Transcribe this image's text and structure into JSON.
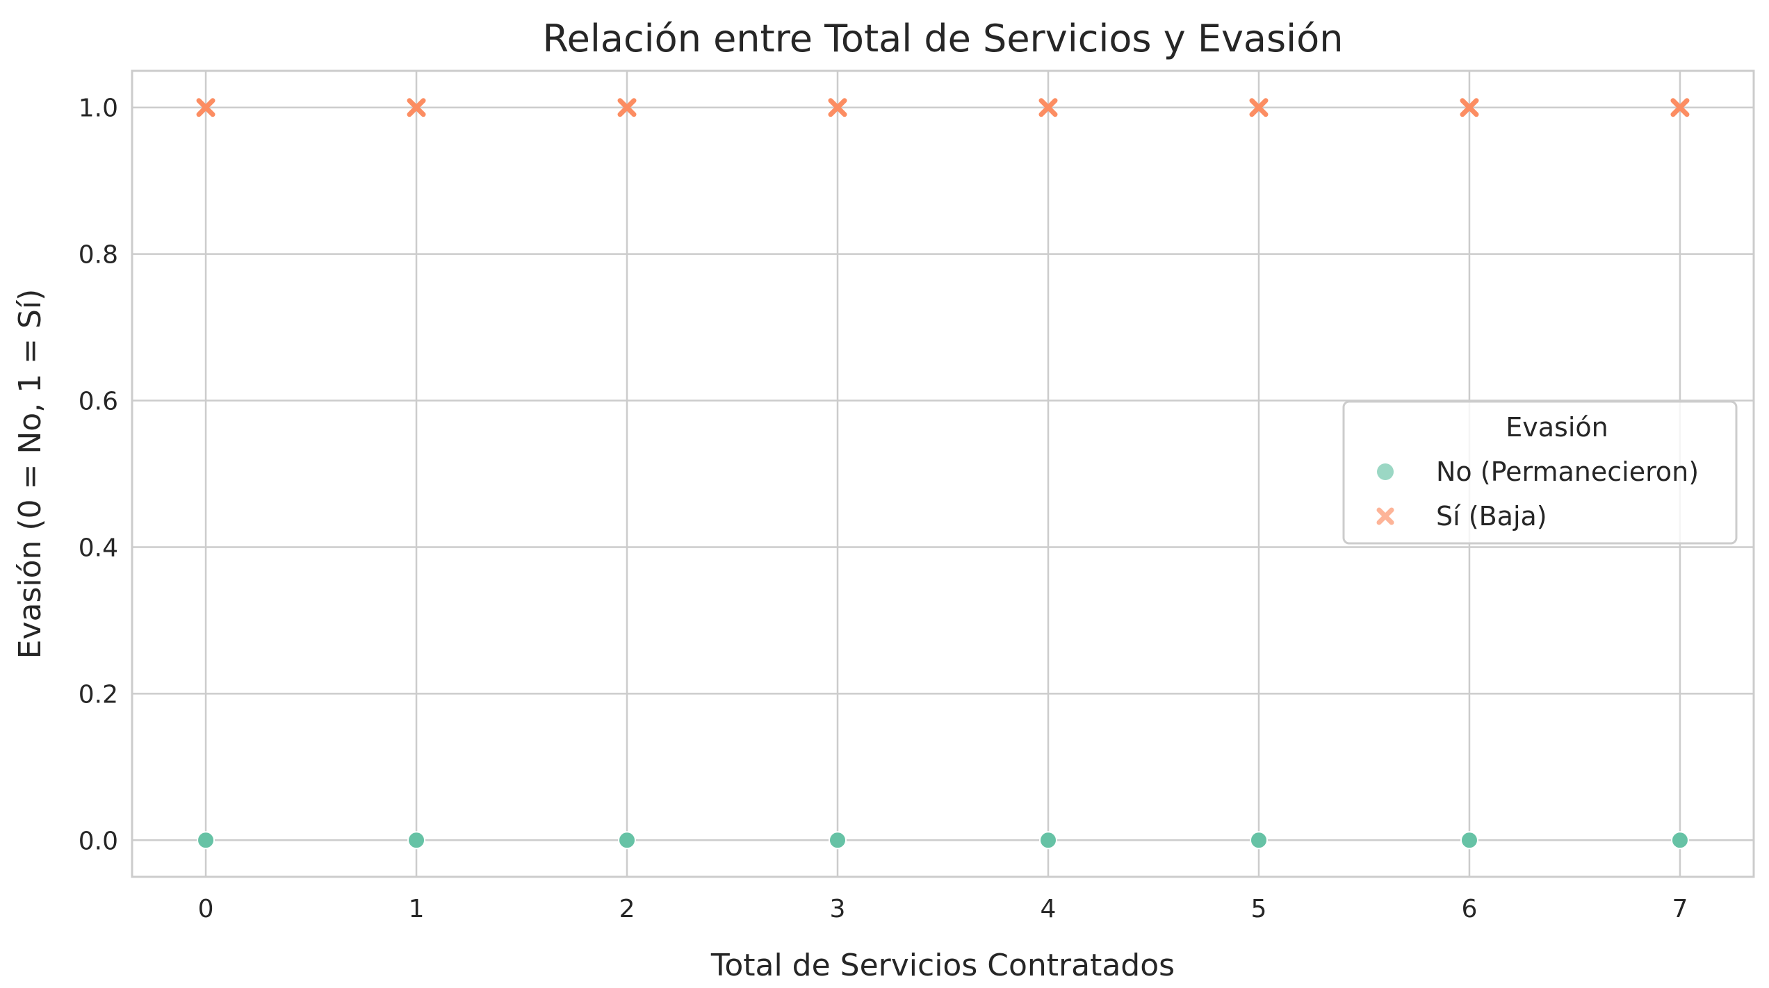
{
  "chart_data": {
    "type": "scatter",
    "title": "Relación entre Total de Servicios y Evasión",
    "xlabel": "Total de Servicios Contratados",
    "ylabel": "Evasión (0 = No, 1 = Sí)",
    "xlim": [
      -0.35,
      7.35
    ],
    "ylim": [
      -0.05,
      1.05
    ],
    "xticks": [
      0,
      1,
      2,
      3,
      4,
      5,
      6,
      7
    ],
    "xtick_labels": [
      "0",
      "1",
      "2",
      "3",
      "4",
      "5",
      "6",
      "7"
    ],
    "yticks": [
      0.0,
      0.2,
      0.4,
      0.6,
      0.8,
      1.0
    ],
    "ytick_labels": [
      "0.0",
      "0.2",
      "0.4",
      "0.6",
      "0.8",
      "1.0"
    ],
    "grid": true,
    "legend": {
      "title": "Evasión",
      "placement": "center-right"
    },
    "series": [
      {
        "name": "No (Permanecieron)",
        "marker": "circle",
        "color": "#66c2a5",
        "x": [
          0,
          1,
          2,
          3,
          4,
          5,
          6,
          7
        ],
        "y": [
          0,
          0,
          0,
          0,
          0,
          0,
          0,
          0
        ]
      },
      {
        "name": "Sí (Baja)",
        "marker": "x",
        "color": "#fc8d62",
        "x": [
          0,
          1,
          2,
          3,
          4,
          5,
          6,
          7
        ],
        "y": [
          1,
          1,
          1,
          1,
          1,
          1,
          1,
          1
        ]
      }
    ]
  },
  "colors": {
    "grid": "#cccccc",
    "spine": "#cccccc",
    "text": "#262626",
    "background": "#ffffff"
  }
}
